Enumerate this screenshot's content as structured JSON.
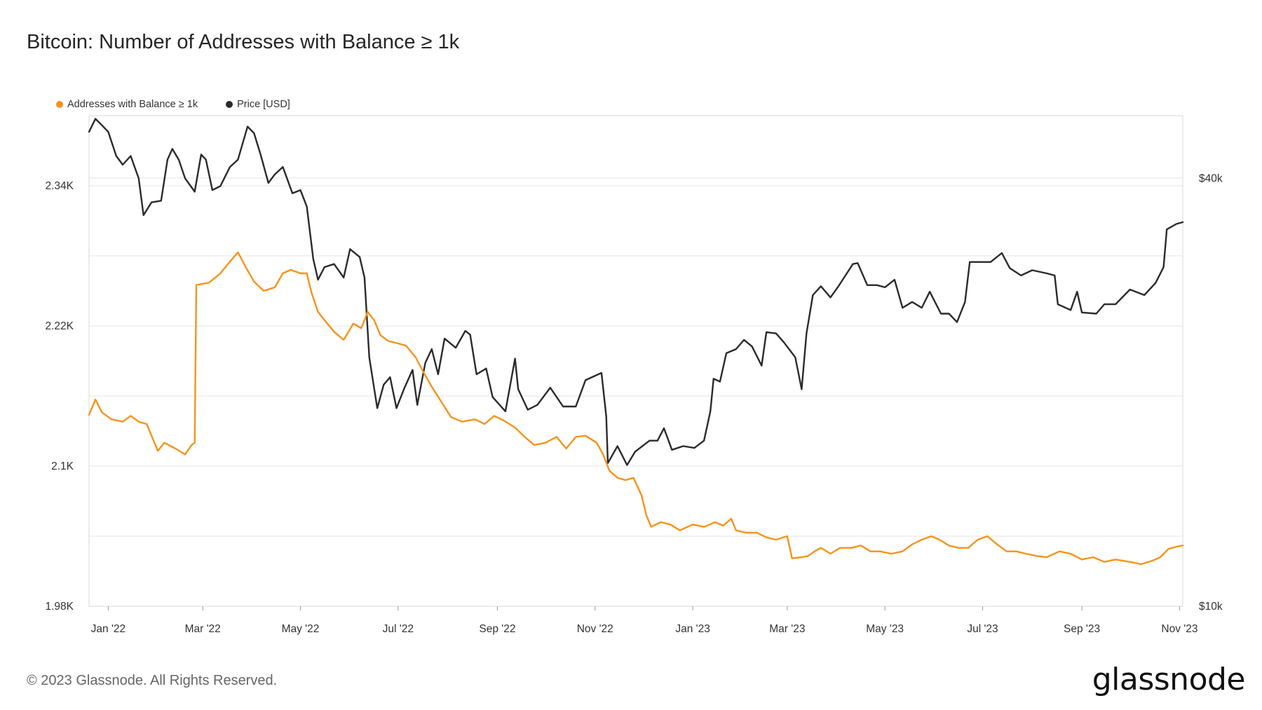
{
  "title": "Bitcoin: Number of Addresses with Balance ≥ 1k",
  "copyright": "© 2023 Glassnode. All Rights Reserved.",
  "brand": "glassnode",
  "colors": {
    "addresses": "#f7931a",
    "price": "#2b2b2b",
    "grid": "#e6e6e6",
    "frame": "#cfcfcf"
  },
  "chart_data": {
    "type": "line",
    "title": "Bitcoin: Number of Addresses with Balance ≥ 1k",
    "legend_position": "top-left",
    "grid": true,
    "x_ticks": [
      "Jan '22",
      "Mar '22",
      "May '22",
      "Jul '22",
      "Sep '22",
      "Nov '22",
      "Jan '23",
      "Mar '23",
      "May '23",
      "Jul '23",
      "Sep '23",
      "Nov '23"
    ],
    "x_range": [
      "2021-12-20",
      "2023-11-03"
    ],
    "y_left": {
      "ticks": [
        "1.98K",
        "2.1K",
        "2.22K",
        "2.34K"
      ],
      "tick_values": [
        1980,
        2100,
        2220,
        2340
      ],
      "range": [
        1980,
        2400
      ]
    },
    "y_right": {
      "ticks": [
        "$10k",
        "$40k"
      ],
      "tick_values": [
        10000,
        40000
      ],
      "range": [
        10000,
        49000
      ],
      "scale": "log"
    },
    "series": [
      {
        "name": "Addresses with Balance ≥ 1k",
        "axis": "left",
        "points": [
          [
            "2021-12-20",
            2144
          ],
          [
            "2021-12-24",
            2157
          ],
          [
            "2021-12-28",
            2146
          ],
          [
            "2022-01-03",
            2140
          ],
          [
            "2022-01-10",
            2138
          ],
          [
            "2022-01-15",
            2143
          ],
          [
            "2022-01-20",
            2138
          ],
          [
            "2022-01-25",
            2136
          ],
          [
            "2022-02-01",
            2113
          ],
          [
            "2022-02-05",
            2120
          ],
          [
            "2022-02-12",
            2115
          ],
          [
            "2022-02-18",
            2110
          ],
          [
            "2022-02-22",
            2118
          ],
          [
            "2022-02-24",
            2120
          ],
          [
            "2022-02-25",
            2255
          ],
          [
            "2022-03-05",
            2257
          ],
          [
            "2022-03-12",
            2265
          ],
          [
            "2022-03-18",
            2275
          ],
          [
            "2022-03-23",
            2283
          ],
          [
            "2022-03-28",
            2270
          ],
          [
            "2022-04-02",
            2258
          ],
          [
            "2022-04-08",
            2250
          ],
          [
            "2022-04-15",
            2253
          ],
          [
            "2022-04-20",
            2265
          ],
          [
            "2022-04-25",
            2268
          ],
          [
            "2022-05-01",
            2265
          ],
          [
            "2022-05-05",
            2265
          ],
          [
            "2022-05-08",
            2248
          ],
          [
            "2022-05-12",
            2232
          ],
          [
            "2022-05-16",
            2225
          ],
          [
            "2022-05-22",
            2215
          ],
          [
            "2022-05-28",
            2208
          ],
          [
            "2022-06-03",
            2222
          ],
          [
            "2022-06-08",
            2218
          ],
          [
            "2022-06-12",
            2232
          ],
          [
            "2022-06-16",
            2225
          ],
          [
            "2022-06-20",
            2212
          ],
          [
            "2022-06-25",
            2207
          ],
          [
            "2022-07-01",
            2205
          ],
          [
            "2022-07-06",
            2203
          ],
          [
            "2022-07-12",
            2193
          ],
          [
            "2022-07-17",
            2180
          ],
          [
            "2022-07-22",
            2168
          ],
          [
            "2022-07-28",
            2155
          ],
          [
            "2022-08-03",
            2142
          ],
          [
            "2022-08-10",
            2138
          ],
          [
            "2022-08-18",
            2140
          ],
          [
            "2022-08-24",
            2136
          ],
          [
            "2022-08-30",
            2143
          ],
          [
            "2022-09-05",
            2139
          ],
          [
            "2022-09-12",
            2133
          ],
          [
            "2022-09-18",
            2125
          ],
          [
            "2022-09-24",
            2118
          ],
          [
            "2022-10-01",
            2120
          ],
          [
            "2022-10-08",
            2125
          ],
          [
            "2022-10-14",
            2115
          ],
          [
            "2022-10-20",
            2125
          ],
          [
            "2022-10-26",
            2126
          ],
          [
            "2022-11-02",
            2120
          ],
          [
            "2022-11-06",
            2110
          ],
          [
            "2022-11-10",
            2096
          ],
          [
            "2022-11-15",
            2090
          ],
          [
            "2022-11-20",
            2088
          ],
          [
            "2022-11-25",
            2090
          ],
          [
            "2022-11-30",
            2075
          ],
          [
            "2022-12-03",
            2058
          ],
          [
            "2022-12-06",
            2048
          ],
          [
            "2022-12-12",
            2052
          ],
          [
            "2022-12-18",
            2050
          ],
          [
            "2022-12-24",
            2045
          ],
          [
            "2023-01-01",
            2050
          ],
          [
            "2023-01-08",
            2048
          ],
          [
            "2023-01-15",
            2052
          ],
          [
            "2023-01-20",
            2049
          ],
          [
            "2023-01-25",
            2055
          ],
          [
            "2023-01-28",
            2045
          ],
          [
            "2023-02-03",
            2043
          ],
          [
            "2023-02-10",
            2043
          ],
          [
            "2023-02-16",
            2039
          ],
          [
            "2023-02-22",
            2037
          ],
          [
            "2023-03-01",
            2040
          ],
          [
            "2023-03-04",
            2021
          ],
          [
            "2023-03-10",
            2022
          ],
          [
            "2023-03-14",
            2023
          ],
          [
            "2023-03-18",
            2027
          ],
          [
            "2023-03-22",
            2030
          ],
          [
            "2023-03-28",
            2025
          ],
          [
            "2023-04-03",
            2030
          ],
          [
            "2023-04-10",
            2030
          ],
          [
            "2023-04-16",
            2032
          ],
          [
            "2023-04-22",
            2027
          ],
          [
            "2023-04-28",
            2027
          ],
          [
            "2023-05-05",
            2025
          ],
          [
            "2023-05-12",
            2027
          ],
          [
            "2023-05-18",
            2033
          ],
          [
            "2023-05-24",
            2037
          ],
          [
            "2023-05-30",
            2040
          ],
          [
            "2023-06-04",
            2037
          ],
          [
            "2023-06-10",
            2032
          ],
          [
            "2023-06-16",
            2030
          ],
          [
            "2023-06-22",
            2030
          ],
          [
            "2023-06-28",
            2037
          ],
          [
            "2023-07-04",
            2040
          ],
          [
            "2023-07-10",
            2033
          ],
          [
            "2023-07-16",
            2027
          ],
          [
            "2023-07-22",
            2027
          ],
          [
            "2023-07-28",
            2025
          ],
          [
            "2023-08-04",
            2023
          ],
          [
            "2023-08-10",
            2022
          ],
          [
            "2023-08-18",
            2027
          ],
          [
            "2023-08-25",
            2025
          ],
          [
            "2023-09-01",
            2020
          ],
          [
            "2023-09-08",
            2022
          ],
          [
            "2023-09-15",
            2018
          ],
          [
            "2023-09-22",
            2020
          ],
          [
            "2023-10-01",
            2018
          ],
          [
            "2023-10-08",
            2016
          ],
          [
            "2023-10-15",
            2019
          ],
          [
            "2023-10-20",
            2022
          ],
          [
            "2023-10-25",
            2029
          ],
          [
            "2023-10-30",
            2031
          ],
          [
            "2023-11-03",
            2032
          ]
        ]
      },
      {
        "name": "Price [USD]",
        "axis": "right",
        "points": [
          [
            "2021-12-20",
            46500
          ],
          [
            "2021-12-24",
            48500
          ],
          [
            "2021-12-28",
            47500
          ],
          [
            "2022-01-01",
            46500
          ],
          [
            "2022-01-06",
            43000
          ],
          [
            "2022-01-10",
            41800
          ],
          [
            "2022-01-15",
            43000
          ],
          [
            "2022-01-20",
            40000
          ],
          [
            "2022-01-23",
            35500
          ],
          [
            "2022-01-28",
            37000
          ],
          [
            "2022-02-03",
            37200
          ],
          [
            "2022-02-07",
            42500
          ],
          [
            "2022-02-10",
            44000
          ],
          [
            "2022-02-14",
            42500
          ],
          [
            "2022-02-18",
            40000
          ],
          [
            "2022-02-24",
            38300
          ],
          [
            "2022-02-28",
            43200
          ],
          [
            "2022-03-03",
            42500
          ],
          [
            "2022-03-07",
            38500
          ],
          [
            "2022-03-12",
            39000
          ],
          [
            "2022-03-18",
            41500
          ],
          [
            "2022-03-23",
            42500
          ],
          [
            "2022-03-29",
            47300
          ],
          [
            "2022-04-02",
            46300
          ],
          [
            "2022-04-06",
            43300
          ],
          [
            "2022-04-11",
            39400
          ],
          [
            "2022-04-15",
            40500
          ],
          [
            "2022-04-20",
            41500
          ],
          [
            "2022-04-26",
            38100
          ],
          [
            "2022-05-01",
            38500
          ],
          [
            "2022-05-05",
            36500
          ],
          [
            "2022-05-09",
            30800
          ],
          [
            "2022-05-12",
            28800
          ],
          [
            "2022-05-16",
            30000
          ],
          [
            "2022-05-22",
            30300
          ],
          [
            "2022-05-28",
            29000
          ],
          [
            "2022-06-01",
            31800
          ],
          [
            "2022-06-07",
            31000
          ],
          [
            "2022-06-10",
            29000
          ],
          [
            "2022-06-13",
            22400
          ],
          [
            "2022-06-18",
            19000
          ],
          [
            "2022-06-22",
            20500
          ],
          [
            "2022-06-26",
            21000
          ],
          [
            "2022-06-30",
            19000
          ],
          [
            "2022-07-05",
            20300
          ],
          [
            "2022-07-10",
            21500
          ],
          [
            "2022-07-13",
            19200
          ],
          [
            "2022-07-18",
            22000
          ],
          [
            "2022-07-22",
            23000
          ],
          [
            "2022-07-26",
            21200
          ],
          [
            "2022-07-30",
            23800
          ],
          [
            "2022-08-06",
            23100
          ],
          [
            "2022-08-12",
            24400
          ],
          [
            "2022-08-15",
            24100
          ],
          [
            "2022-08-19",
            21200
          ],
          [
            "2022-08-25",
            21600
          ],
          [
            "2022-08-29",
            19700
          ],
          [
            "2022-09-06",
            18800
          ],
          [
            "2022-09-12",
            22300
          ],
          [
            "2022-09-14",
            20200
          ],
          [
            "2022-09-20",
            18900
          ],
          [
            "2022-09-26",
            19200
          ],
          [
            "2022-10-04",
            20300
          ],
          [
            "2022-10-12",
            19100
          ],
          [
            "2022-10-20",
            19100
          ],
          [
            "2022-10-26",
            20800
          ],
          [
            "2022-11-05",
            21300
          ],
          [
            "2022-11-08",
            18500
          ],
          [
            "2022-11-09",
            15900
          ],
          [
            "2022-11-15",
            16800
          ],
          [
            "2022-11-21",
            15800
          ],
          [
            "2022-11-26",
            16500
          ],
          [
            "2022-12-05",
            17100
          ],
          [
            "2022-12-10",
            17100
          ],
          [
            "2022-12-14",
            17800
          ],
          [
            "2022-12-19",
            16600
          ],
          [
            "2022-12-26",
            16800
          ],
          [
            "2023-01-02",
            16700
          ],
          [
            "2023-01-08",
            17100
          ],
          [
            "2023-01-12",
            18800
          ],
          [
            "2023-01-14",
            20900
          ],
          [
            "2023-01-18",
            20700
          ],
          [
            "2023-01-22",
            22700
          ],
          [
            "2023-01-28",
            23000
          ],
          [
            "2023-02-02",
            23700
          ],
          [
            "2023-02-07",
            23200
          ],
          [
            "2023-02-13",
            21800
          ],
          [
            "2023-02-16",
            24300
          ],
          [
            "2023-02-22",
            24200
          ],
          [
            "2023-02-27",
            23500
          ],
          [
            "2023-03-06",
            22400
          ],
          [
            "2023-03-10",
            20200
          ],
          [
            "2023-03-13",
            24200
          ],
          [
            "2023-03-17",
            27400
          ],
          [
            "2023-03-22",
            28200
          ],
          [
            "2023-03-28",
            27200
          ],
          [
            "2023-04-02",
            28200
          ],
          [
            "2023-04-11",
            30300
          ],
          [
            "2023-04-14",
            30400
          ],
          [
            "2023-04-20",
            28300
          ],
          [
            "2023-04-26",
            28300
          ],
          [
            "2023-05-01",
            28100
          ],
          [
            "2023-05-07",
            28800
          ],
          [
            "2023-05-12",
            26300
          ],
          [
            "2023-05-18",
            26800
          ],
          [
            "2023-05-24",
            26300
          ],
          [
            "2023-05-29",
            27700
          ],
          [
            "2023-06-05",
            25800
          ],
          [
            "2023-06-10",
            25800
          ],
          [
            "2023-06-15",
            25100
          ],
          [
            "2023-06-20",
            26800
          ],
          [
            "2023-06-23",
            30500
          ],
          [
            "2023-06-30",
            30500
          ],
          [
            "2023-07-06",
            30500
          ],
          [
            "2023-07-13",
            31400
          ],
          [
            "2023-07-18",
            29900
          ],
          [
            "2023-07-25",
            29200
          ],
          [
            "2023-08-01",
            29700
          ],
          [
            "2023-08-10",
            29400
          ],
          [
            "2023-08-15",
            29200
          ],
          [
            "2023-08-17",
            26600
          ],
          [
            "2023-08-25",
            26100
          ],
          [
            "2023-08-29",
            27700
          ],
          [
            "2023-09-01",
            25900
          ],
          [
            "2023-09-10",
            25800
          ],
          [
            "2023-09-15",
            26600
          ],
          [
            "2023-09-22",
            26600
          ],
          [
            "2023-10-01",
            27900
          ],
          [
            "2023-10-10",
            27400
          ],
          [
            "2023-10-17",
            28500
          ],
          [
            "2023-10-22",
            30000
          ],
          [
            "2023-10-24",
            33900
          ],
          [
            "2023-10-30",
            34500
          ],
          [
            "2023-11-03",
            34700
          ]
        ]
      }
    ]
  }
}
